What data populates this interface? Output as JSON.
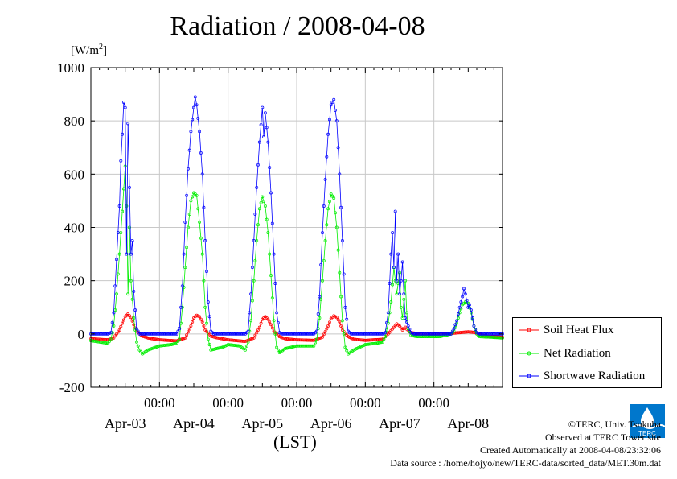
{
  "chart_data": {
    "type": "line",
    "title": "Radiation / 2008-04-08",
    "ylabel_unit": "[W/m",
    "ylabel_unit_sup": "2",
    "ylabel_unit_end": "]",
    "xlabel": "(LST)",
    "ylim": [
      -200,
      1000
    ],
    "yticks": [
      -200,
      0,
      200,
      400,
      600,
      800,
      1000
    ],
    "x_range_hours": [
      0,
      144
    ],
    "x_time_ticks": [
      {
        "label": "00:00",
        "hour": 24
      },
      {
        "label": "00:00",
        "hour": 48
      },
      {
        "label": "00:00",
        "hour": 72
      },
      {
        "label": "00:00",
        "hour": 96
      },
      {
        "label": "00:00",
        "hour": 120
      }
    ],
    "x_day_labels": [
      {
        "label": "Apr-03",
        "hour": 12
      },
      {
        "label": "Apr-04",
        "hour": 36
      },
      {
        "label": "Apr-05",
        "hour": 60
      },
      {
        "label": "Apr-06",
        "hour": 84
      },
      {
        "label": "Apr-07",
        "hour": 108
      },
      {
        "label": "Apr-08",
        "hour": 132
      }
    ],
    "grid": true,
    "legend_position": "lower-right-outside",
    "series": [
      {
        "name": "Soil Heat Flux",
        "color": "#ff0000",
        "points": [
          [
            0,
            -18
          ],
          [
            3,
            -20
          ],
          [
            6,
            -22
          ],
          [
            8,
            -15
          ],
          [
            10,
            15
          ],
          [
            11,
            40
          ],
          [
            12,
            65
          ],
          [
            13,
            75
          ],
          [
            14,
            62
          ],
          [
            15,
            35
          ],
          [
            16,
            10
          ],
          [
            18,
            -8
          ],
          [
            20,
            -15
          ],
          [
            24,
            -22
          ],
          [
            30,
            -26
          ],
          [
            33,
            -15
          ],
          [
            35,
            30
          ],
          [
            36,
            60
          ],
          [
            37,
            70
          ],
          [
            38,
            65
          ],
          [
            39,
            45
          ],
          [
            40,
            15
          ],
          [
            42,
            -8
          ],
          [
            44,
            -14
          ],
          [
            48,
            -22
          ],
          [
            54,
            -28
          ],
          [
            57,
            -15
          ],
          [
            59,
            25
          ],
          [
            60,
            55
          ],
          [
            61,
            65
          ],
          [
            62,
            55
          ],
          [
            63,
            35
          ],
          [
            64,
            10
          ],
          [
            66,
            -10
          ],
          [
            68,
            -18
          ],
          [
            72,
            -22
          ],
          [
            78,
            -24
          ],
          [
            81,
            -12
          ],
          [
            83,
            30
          ],
          [
            84,
            58
          ],
          [
            85,
            68
          ],
          [
            86,
            62
          ],
          [
            87,
            45
          ],
          [
            88,
            15
          ],
          [
            90,
            -10
          ],
          [
            92,
            -20
          ],
          [
            96,
            -24
          ],
          [
            102,
            -20
          ],
          [
            104,
            0
          ],
          [
            106,
            25
          ],
          [
            107,
            38
          ],
          [
            108,
            30
          ],
          [
            109,
            15
          ],
          [
            110,
            25
          ],
          [
            111,
            12
          ],
          [
            112,
            5
          ],
          [
            114,
            2
          ],
          [
            116,
            0
          ],
          [
            120,
            0
          ],
          [
            126,
            2
          ],
          [
            129,
            5
          ],
          [
            132,
            8
          ],
          [
            134,
            6
          ],
          [
            136,
            0
          ],
          [
            138,
            -8
          ],
          [
            144,
            -12
          ]
        ]
      },
      {
        "name": "Net Radiation",
        "color": "#00ee00",
        "points": [
          [
            0,
            -25
          ],
          [
            3,
            -30
          ],
          [
            6,
            -35
          ],
          [
            7,
            -20
          ],
          [
            8,
            30
          ],
          [
            9,
            150
          ],
          [
            10,
            300
          ],
          [
            11,
            460
          ],
          [
            12,
            630
          ],
          [
            12.5,
            480
          ],
          [
            13,
            150
          ],
          [
            13.5,
            400
          ],
          [
            14,
            200
          ],
          [
            15,
            60
          ],
          [
            16,
            -30
          ],
          [
            17,
            -60
          ],
          [
            18,
            -75
          ],
          [
            20,
            -60
          ],
          [
            24,
            -45
          ],
          [
            28,
            -40
          ],
          [
            30,
            -35
          ],
          [
            31,
            -20
          ],
          [
            32,
            100
          ],
          [
            33,
            250
          ],
          [
            34,
            400
          ],
          [
            35,
            500
          ],
          [
            36,
            530
          ],
          [
            37,
            520
          ],
          [
            38,
            420
          ],
          [
            39,
            300
          ],
          [
            40,
            100
          ],
          [
            41,
            -20
          ],
          [
            42,
            -60
          ],
          [
            44,
            -55
          ],
          [
            46,
            -50
          ],
          [
            48,
            -40
          ],
          [
            52,
            -45
          ],
          [
            54,
            -60
          ],
          [
            55,
            -30
          ],
          [
            56,
            50
          ],
          [
            57,
            200
          ],
          [
            58,
            350
          ],
          [
            59,
            470
          ],
          [
            60,
            515
          ],
          [
            61,
            480
          ],
          [
            62,
            380
          ],
          [
            63,
            220
          ],
          [
            64,
            50
          ],
          [
            65,
            -50
          ],
          [
            66,
            -70
          ],
          [
            68,
            -55
          ],
          [
            72,
            -45
          ],
          [
            76,
            -45
          ],
          [
            78,
            -45
          ],
          [
            79,
            -20
          ],
          [
            80,
            60
          ],
          [
            81,
            200
          ],
          [
            82,
            350
          ],
          [
            83,
            470
          ],
          [
            84,
            525
          ],
          [
            85,
            510
          ],
          [
            86,
            400
          ],
          [
            87,
            230
          ],
          [
            88,
            50
          ],
          [
            89,
            -50
          ],
          [
            90,
            -75
          ],
          [
            92,
            -60
          ],
          [
            96,
            -40
          ],
          [
            100,
            -35
          ],
          [
            102,
            -30
          ],
          [
            103,
            -10
          ],
          [
            104,
            40
          ],
          [
            105,
            120
          ],
          [
            106,
            250
          ],
          [
            107,
            150
          ],
          [
            108,
            230
          ],
          [
            108.5,
            100
          ],
          [
            109,
            60
          ],
          [
            110,
            200
          ],
          [
            110.5,
            80
          ],
          [
            111,
            20
          ],
          [
            112,
            -5
          ],
          [
            114,
            -10
          ],
          [
            118,
            -10
          ],
          [
            122,
            -10
          ],
          [
            124,
            -5
          ],
          [
            126,
            0
          ],
          [
            127,
            10
          ],
          [
            128,
            40
          ],
          [
            129,
            80
          ],
          [
            130,
            110
          ],
          [
            131,
            120
          ],
          [
            132,
            115
          ],
          [
            133,
            80
          ],
          [
            134,
            30
          ],
          [
            135,
            0
          ],
          [
            136,
            -10
          ],
          [
            140,
            -12
          ],
          [
            144,
            -15
          ]
        ]
      },
      {
        "name": "Shortwave Radiation",
        "color": "#0000ff",
        "points": [
          [
            0,
            0
          ],
          [
            6,
            0
          ],
          [
            7,
            5
          ],
          [
            8,
            80
          ],
          [
            9,
            280
          ],
          [
            10,
            480
          ],
          [
            10.5,
            650
          ],
          [
            11,
            750
          ],
          [
            11.5,
            870
          ],
          [
            12,
            850
          ],
          [
            12.5,
            300
          ],
          [
            13,
            790
          ],
          [
            13.5,
            550
          ],
          [
            14,
            300
          ],
          [
            14.5,
            350
          ],
          [
            15,
            160
          ],
          [
            16,
            20
          ],
          [
            17,
            0
          ],
          [
            30,
            0
          ],
          [
            31,
            20
          ],
          [
            32,
            180
          ],
          [
            33,
            420
          ],
          [
            34,
            620
          ],
          [
            35,
            760
          ],
          [
            36,
            850
          ],
          [
            36.5,
            890
          ],
          [
            37,
            860
          ],
          [
            38,
            760
          ],
          [
            39,
            600
          ],
          [
            40,
            350
          ],
          [
            41,
            120
          ],
          [
            42,
            10
          ],
          [
            43,
            0
          ],
          [
            54,
            0
          ],
          [
            55,
            10
          ],
          [
            56,
            150
          ],
          [
            57,
            350
          ],
          [
            58,
            550
          ],
          [
            59,
            720
          ],
          [
            60,
            850
          ],
          [
            60.5,
            740
          ],
          [
            61,
            830
          ],
          [
            62,
            720
          ],
          [
            63,
            530
          ],
          [
            64,
            300
          ],
          [
            65,
            80
          ],
          [
            66,
            5
          ],
          [
            67,
            0
          ],
          [
            78,
            0
          ],
          [
            79,
            10
          ],
          [
            80,
            140
          ],
          [
            81,
            380
          ],
          [
            82,
            580
          ],
          [
            83,
            750
          ],
          [
            84,
            860
          ],
          [
            85,
            880
          ],
          [
            86,
            800
          ],
          [
            87,
            600
          ],
          [
            88,
            350
          ],
          [
            89,
            100
          ],
          [
            90,
            10
          ],
          [
            91,
            0
          ],
          [
            102,
            0
          ],
          [
            103,
            5
          ],
          [
            104,
            80
          ],
          [
            105,
            300
          ],
          [
            105.5,
            380
          ],
          [
            106,
            250
          ],
          [
            106.5,
            460
          ],
          [
            107,
            200
          ],
          [
            107.5,
            300
          ],
          [
            108,
            150
          ],
          [
            108.5,
            200
          ],
          [
            109,
            270
          ],
          [
            109.5,
            150
          ],
          [
            110,
            60
          ],
          [
            111,
            30
          ],
          [
            112,
            5
          ],
          [
            113,
            0
          ],
          [
            126,
            0
          ],
          [
            127,
            20
          ],
          [
            128,
            50
          ],
          [
            129,
            100
          ],
          [
            130,
            140
          ],
          [
            130.5,
            170
          ],
          [
            131,
            150
          ],
          [
            132,
            100
          ],
          [
            132.5,
            110
          ],
          [
            133,
            90
          ],
          [
            134,
            30
          ],
          [
            135,
            5
          ],
          [
            136,
            0
          ],
          [
            144,
            0
          ]
        ]
      }
    ]
  },
  "credits": {
    "copyright": "©TERC, Univ. Tsukuba",
    "observed": "Observed at TERC Tower site",
    "created": "Created Automatically at 2008-04-08/23:32:06",
    "source": "Data source : /home/hojyo/new/TERC-data/sorted_data/MET.30m.dat"
  },
  "logo": {
    "text": "TERC",
    "color": "#0077cc"
  }
}
